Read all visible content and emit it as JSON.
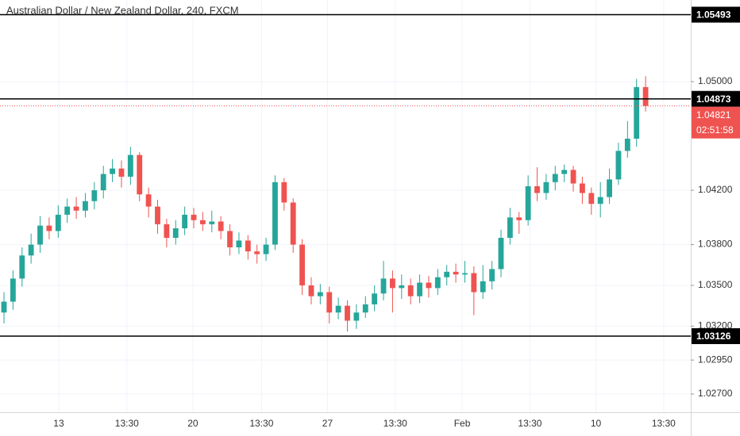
{
  "chart_data": {
    "type": "candlestick",
    "title": "Australian Dollar / New Zealand Dollar, 240, FXCM",
    "up_color": "#26a69a",
    "down_color": "#ef5350",
    "open": [
      1.033,
      1.0338,
      1.0355,
      1.0372,
      1.038,
      1.0394,
      1.039,
      1.0402,
      1.0408,
      1.0405,
      1.0412,
      1.042,
      1.0432,
      1.0436,
      1.043,
      1.0446,
      1.0417,
      1.0408,
      1.0395,
      1.0385,
      1.0392,
      1.0402,
      1.0398,
      1.0395,
      1.0397,
      1.039,
      1.0378,
      1.0383,
      1.0375,
      1.0373,
      1.038,
      1.0426,
      1.0411,
      1.038,
      1.035,
      1.0342,
      1.0345,
      1.033,
      1.0335,
      1.0324,
      1.033,
      1.0336,
      1.0344,
      1.0355,
      1.0348,
      1.035,
      1.0342,
      1.0352,
      1.0348,
      1.0356,
      1.036,
      1.0358,
      1.0359,
      1.0345,
      1.0353,
      1.0362,
      1.0385,
      1.04,
      1.0398,
      1.0423,
      1.0418,
      1.0426,
      1.0432,
      1.0435,
      1.0425,
      1.0418,
      1.041,
      1.0415,
      1.0428,
      1.0449,
      1.0458,
      1.0496
    ],
    "high": [
      1.0345,
      1.0361,
      1.0378,
      1.0388,
      1.0401,
      1.04,
      1.0409,
      1.0414,
      1.0415,
      1.0418,
      1.0426,
      1.0438,
      1.0443,
      1.0442,
      1.0452,
      1.0448,
      1.0422,
      1.0413,
      1.0399,
      1.0398,
      1.0408,
      1.0407,
      1.0404,
      1.0405,
      1.0401,
      1.0395,
      1.0389,
      1.0387,
      1.038,
      1.0385,
      1.0431,
      1.0429,
      1.0414,
      1.0384,
      1.0356,
      1.0351,
      1.0349,
      1.0341,
      1.0339,
      1.0336,
      1.0342,
      1.035,
      1.0368,
      1.0361,
      1.0358,
      1.0355,
      1.0358,
      1.0357,
      1.0362,
      1.0365,
      1.0366,
      1.0368,
      1.0364,
      1.0365,
      1.0368,
      1.0391,
      1.0407,
      1.0404,
      1.0431,
      1.0437,
      1.0432,
      1.0438,
      1.0439,
      1.0438,
      1.043,
      1.0422,
      1.0426,
      1.0436,
      1.0455,
      1.0471,
      1.0502,
      1.0504
    ],
    "low": [
      1.0322,
      1.0332,
      1.0349,
      1.0366,
      1.0374,
      1.0384,
      1.0385,
      1.0396,
      1.0399,
      1.04,
      1.0406,
      1.0414,
      1.0426,
      1.0422,
      1.0424,
      1.0412,
      1.04,
      1.0388,
      1.0378,
      1.038,
      1.0387,
      1.0392,
      1.039,
      1.0389,
      1.0384,
      1.0372,
      1.0373,
      1.0369,
      1.0366,
      1.0368,
      1.0376,
      1.0405,
      1.0374,
      1.0343,
      1.0336,
      1.0336,
      1.0322,
      1.0325,
      1.0316,
      1.0318,
      1.0326,
      1.0331,
      1.0339,
      1.033,
      1.034,
      1.0336,
      1.0337,
      1.0341,
      1.0343,
      1.035,
      1.0352,
      1.0352,
      1.0328,
      1.034,
      1.0347,
      1.0356,
      1.038,
      1.0388,
      1.0394,
      1.0412,
      1.0413,
      1.042,
      1.0426,
      1.0419,
      1.041,
      1.0402,
      1.04,
      1.041,
      1.0424,
      1.0444,
      1.0452,
      1.0478
    ],
    "close": [
      1.0338,
      1.0355,
      1.0372,
      1.038,
      1.0394,
      1.039,
      1.0402,
      1.0408,
      1.0405,
      1.0412,
      1.042,
      1.0432,
      1.0436,
      1.043,
      1.0446,
      1.0417,
      1.0408,
      1.0395,
      1.0385,
      1.0392,
      1.0402,
      1.0398,
      1.0395,
      1.0397,
      1.039,
      1.0378,
      1.0383,
      1.0375,
      1.0373,
      1.038,
      1.0426,
      1.0411,
      1.038,
      1.035,
      1.0342,
      1.0345,
      1.033,
      1.0335,
      1.0324,
      1.033,
      1.0336,
      1.0344,
      1.0355,
      1.0348,
      1.035,
      1.0342,
      1.0352,
      1.0348,
      1.0356,
      1.036,
      1.0358,
      1.0359,
      1.0345,
      1.0353,
      1.0362,
      1.0385,
      1.04,
      1.0398,
      1.0423,
      1.0418,
      1.0426,
      1.0432,
      1.0435,
      1.0425,
      1.0418,
      1.041,
      1.0415,
      1.0428,
      1.0449,
      1.0458,
      1.0496,
      1.04821
    ],
    "xlim": [
      -0.44,
      76
    ],
    "xticks": [
      {
        "value": 6.06,
        "label": "13"
      },
      {
        "value": 13.6,
        "label": "13:30"
      },
      {
        "value": 20.9,
        "label": "20"
      },
      {
        "value": 28.5,
        "label": "13:30"
      },
      {
        "value": 35.8,
        "label": "27"
      },
      {
        "value": 43.3,
        "label": "13:30"
      },
      {
        "value": 50.7,
        "label": "Feb"
      },
      {
        "value": 58.2,
        "label": "13:30"
      },
      {
        "value": 65.5,
        "label": "10"
      },
      {
        "value": 73.0,
        "label": "13:30"
      }
    ],
    "ylim": [
      1.02566,
      1.05601
    ],
    "yticks": [
      {
        "value": 1.05,
        "label": "1.05000"
      },
      {
        "value": 1.042,
        "label": "1.04200"
      },
      {
        "value": 1.038,
        "label": "1.03800"
      },
      {
        "value": 1.035,
        "label": "1.03500"
      },
      {
        "value": 1.032,
        "label": "1.03200"
      },
      {
        "value": 1.0295,
        "label": "1.02950"
      },
      {
        "value": 1.027,
        "label": "1.02700"
      }
    ],
    "grid": true,
    "hlines": [
      {
        "value": 1.05493,
        "label": "1.05493"
      },
      {
        "value": 1.04873,
        "label": "1.04873"
      },
      {
        "value": 1.03126,
        "label": "1.03126"
      }
    ],
    "price_line": {
      "value": 1.04821,
      "label": "1.04821",
      "countdown": "02:51:58"
    }
  }
}
